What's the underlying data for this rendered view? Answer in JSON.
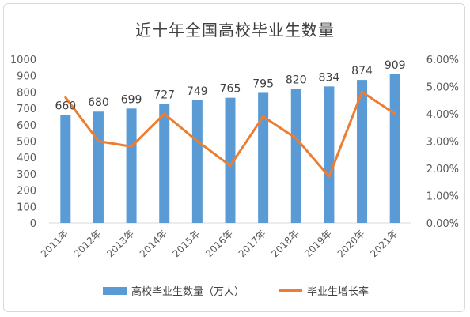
{
  "chart_data": {
    "type": "bar",
    "title": "近十年全国高校毕业生数量",
    "categories": [
      "2011年",
      "2012年",
      "2013年",
      "2014年",
      "2015年",
      "2016年",
      "2017年",
      "2018年",
      "2019年",
      "2020年",
      "2021年"
    ],
    "series": [
      {
        "name": "高校毕业生数量（万人）",
        "type": "bar",
        "axis": "left",
        "color": "#5b9bd5",
        "values": [
          660,
          680,
          699,
          727,
          749,
          765,
          795,
          820,
          834,
          874,
          909
        ]
      },
      {
        "name": "毕业生增长率",
        "type": "line",
        "axis": "right",
        "color": "#ed7d31",
        "values": [
          0.046,
          0.03,
          0.028,
          0.04,
          0.03,
          0.021,
          0.039,
          0.031,
          0.017,
          0.048,
          0.04
        ]
      }
    ],
    "ylim_left": [
      0,
      1000
    ],
    "yticks_left": [
      "0",
      "100",
      "200",
      "300",
      "400",
      "500",
      "600",
      "700",
      "800",
      "900",
      "1000"
    ],
    "ylim_right": [
      0,
      0.06
    ],
    "yticks_right": [
      "0.00%",
      "1.00%",
      "2.00%",
      "3.00%",
      "4.00%",
      "5.00%",
      "6.00%"
    ],
    "grid": false,
    "legend_position": "bottom"
  }
}
